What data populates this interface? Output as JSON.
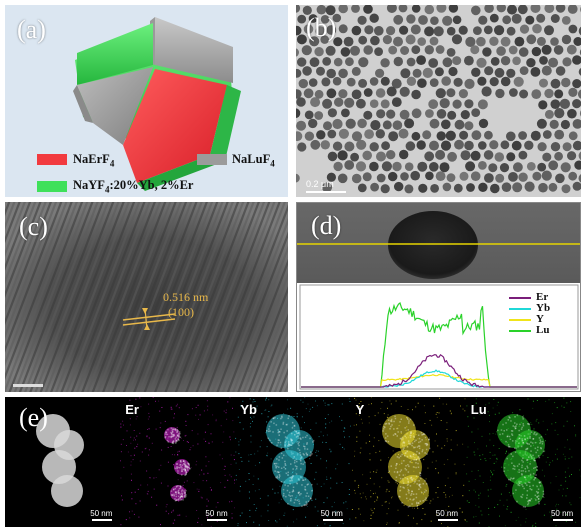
{
  "panels": {
    "a": {
      "label": "(a)",
      "legend": [
        {
          "text": "NaErF",
          "sub": "4",
          "color": "#f23a3f"
        },
        {
          "text": "NaLuF",
          "sub": "4",
          "color": "#9b9b9b"
        },
        {
          "text": "NaYF",
          "sub": "4",
          "suffix": ":20%Yb, 2%Er",
          "color": "#3fe05a"
        }
      ]
    },
    "b": {
      "label": "(b)",
      "scalebar": "0.2 μm"
    },
    "c": {
      "label": "(c)",
      "annotation_spacing": "0.516 nm",
      "annotation_plane": "(100)"
    },
    "d": {
      "label": "(d)",
      "legend": [
        {
          "name": "Er",
          "color": "#7a1e7a"
        },
        {
          "name": "Yb",
          "color": "#1fd8d8"
        },
        {
          "name": "Y",
          "color": "#f0e41a"
        },
        {
          "name": "Lu",
          "color": "#2ad22a"
        }
      ]
    },
    "e": {
      "label": "(e)",
      "maps": [
        {
          "name": "",
          "color": "#d8d8d8",
          "scalebar": "50 nm"
        },
        {
          "name": "Er",
          "color": "#e020e0",
          "scalebar": "50 nm"
        },
        {
          "name": "Yb",
          "color": "#30c8d8",
          "scalebar": "50 nm"
        },
        {
          "name": "Y",
          "color": "#f0e030",
          "scalebar": "50 nm"
        },
        {
          "name": "Lu",
          "color": "#28d028",
          "scalebar": "50 nm"
        }
      ]
    }
  }
}
